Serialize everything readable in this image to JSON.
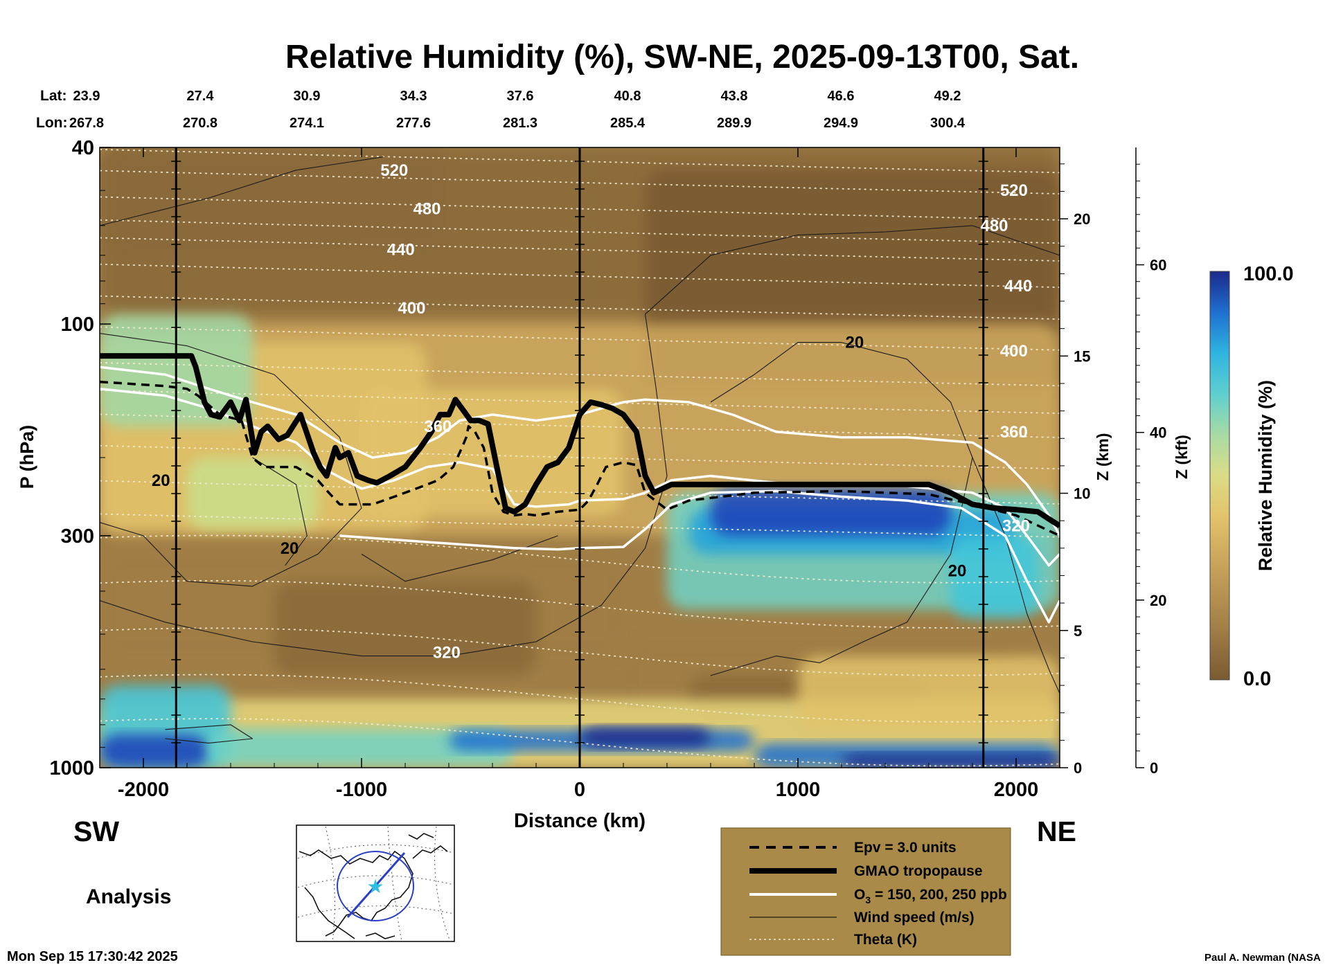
{
  "chart_data": {
    "type": "heatmap",
    "title": "Relative Humidity (%), SW-NE, 2025-09-13T00, Sat.",
    "xlabel": "Distance (km)",
    "ylabel": "P (hPa)",
    "z_km_label": "Z (km)",
    "z_kft_label": "Z (kft)",
    "colorbar_label": "Relative Humidity (%)",
    "colorbar_max_label": "100.0",
    "colorbar_min_label": "0.0",
    "colorbar_range": [
      0,
      100
    ],
    "xlim": [
      -2200,
      2200
    ],
    "ylim_hpa": [
      1000,
      40
    ],
    "x_ticks": [
      -2000,
      -1000,
      0,
      1000,
      2000
    ],
    "x_tick_labels": [
      "-2000",
      "-1000",
      "0",
      "1000",
      "2000"
    ],
    "p_ticks": [
      1000,
      300,
      100,
      40
    ],
    "p_tick_labels": [
      "1000",
      "300",
      "100",
      "40"
    ],
    "z_km_ticks": [
      0,
      5,
      10,
      15,
      20
    ],
    "z_km_tick_labels": [
      "0",
      "5",
      "10",
      "15",
      "20"
    ],
    "z_kft_ticks": [
      0,
      20,
      40,
      60
    ],
    "z_kft_tick_labels": [
      "0",
      "20",
      "40",
      "60"
    ],
    "lat_label": "Lat:",
    "lon_label": "Lon:",
    "lat_values": [
      "23.9",
      "27.4",
      "30.9",
      "34.3",
      "37.6",
      "40.8",
      "43.8",
      "46.6",
      "49.2"
    ],
    "lon_values": [
      "267.8",
      "270.8",
      "274.1",
      "277.6",
      "281.3",
      "285.4",
      "289.9",
      "294.9",
      "300.4"
    ],
    "lat_lon_distances": [
      -2200,
      -1700,
      -1200,
      -700,
      -200,
      300,
      800,
      1300,
      1800
    ],
    "vertical_markers_km": [
      -1850,
      0,
      1850
    ],
    "theta_contours": [
      {
        "label": "520",
        "p": 45,
        "label_x": -850
      },
      {
        "label": "480",
        "p": 55,
        "label_x": -700
      },
      {
        "label": "440",
        "p": 68,
        "label_x": -820
      },
      {
        "label": "400",
        "p": 92,
        "label_x": -770
      },
      {
        "label": "360",
        "p": 170,
        "label_x": -650
      },
      {
        "label": "320",
        "p": 550,
        "label_x": -610
      }
    ],
    "theta_right_labels": [
      {
        "label": "520",
        "p": 50,
        "x": 1990
      },
      {
        "label": "480",
        "p": 60,
        "x": 1900
      },
      {
        "label": "440",
        "p": 82,
        "x": 2010
      },
      {
        "label": "400",
        "p": 115,
        "x": 1990
      },
      {
        "label": "360",
        "p": 175,
        "x": 1990
      },
      {
        "label": "320",
        "p": 285,
        "x": 2000
      }
    ],
    "wind_labels": [
      {
        "label": "20",
        "x": 1260,
        "p": 110
      },
      {
        "label": "20",
        "x": -1920,
        "p": 225
      },
      {
        "label": "20",
        "x": -1330,
        "p": 320
      },
      {
        "label": "20",
        "x": 1730,
        "p": 360
      }
    ],
    "tropopause": {
      "x": [
        -2200,
        -1780,
        -1760,
        -1720,
        -1690,
        -1650,
        -1600,
        -1560,
        -1530,
        -1490,
        -1460,
        -1430,
        -1380,
        -1340,
        -1280,
        -1220,
        -1190,
        -1160,
        -1120,
        -1100,
        -1060,
        -1020,
        -970,
        -930,
        -870,
        -800,
        -730,
        -680,
        -640,
        -600,
        -570,
        -540,
        -500,
        -460,
        -420,
        -380,
        -340,
        -300,
        -250,
        -200,
        -150,
        -100,
        -50,
        0,
        50,
        100,
        150,
        200,
        260,
        300,
        340,
        380,
        420,
        500,
        600,
        800,
        1000,
        1200,
        1400,
        1600,
        1700,
        1800,
        1900,
        2000,
        2100,
        2150,
        2200
      ],
      "p": [
        118,
        118,
        125,
        150,
        160,
        162,
        150,
        165,
        148,
        195,
        175,
        170,
        182,
        178,
        160,
        195,
        210,
        220,
        190,
        200,
        195,
        220,
        225,
        228,
        220,
        210,
        190,
        175,
        160,
        160,
        148,
        155,
        165,
        165,
        168,
        210,
        260,
        265,
        255,
        230,
        210,
        205,
        190,
        160,
        150,
        152,
        155,
        160,
        175,
        220,
        240,
        235,
        230,
        230,
        230,
        230,
        230,
        230,
        230,
        230,
        240,
        255,
        260,
        262,
        265,
        275,
        285
      ]
    },
    "epv_3_units": {
      "x": [
        -2200,
        -1900,
        -1800,
        -1750,
        -1650,
        -1550,
        -1500,
        -1450,
        -1300,
        -1200,
        -1150,
        -1100,
        -1050,
        -950,
        -850,
        -750,
        -650,
        -580,
        -540,
        -520,
        -510,
        -480,
        -440,
        -400,
        -350,
        -300,
        -250,
        -200,
        -100,
        0,
        40,
        80,
        120,
        200,
        260,
        300,
        400,
        500,
        800,
        1200,
        1600,
        1800,
        2000,
        2200
      ],
      "p": [
        135,
        138,
        140,
        145,
        160,
        165,
        200,
        210,
        210,
        225,
        240,
        255,
        255,
        255,
        245,
        235,
        225,
        210,
        190,
        180,
        170,
        175,
        190,
        240,
        265,
        270,
        268,
        270,
        265,
        262,
        250,
        230,
        210,
        205,
        208,
        240,
        262,
        250,
        240,
        238,
        242,
        255,
        270,
        300
      ]
    },
    "ozone_contours": [
      {
        "label": "150 ppb",
        "x": [
          -2200,
          -1900,
          -1700,
          -1500,
          -1300,
          -1100,
          -950,
          -800,
          -650,
          -550,
          -400,
          -200,
          0,
          200,
          300,
          500,
          700,
          900,
          1200,
          1500,
          1800,
          1950,
          2050,
          2150,
          2200
        ],
        "p": [
          125,
          130,
          140,
          150,
          160,
          185,
          200,
          195,
          180,
          165,
          160,
          165,
          160,
          150,
          148,
          150,
          160,
          175,
          180,
          180,
          185,
          205,
          230,
          270,
          300
        ]
      },
      {
        "label": "200 ppb",
        "x": [
          -2200,
          -1900,
          -1700,
          -1500,
          -1300,
          -1150,
          -1000,
          -850,
          -700,
          -550,
          -400,
          -300,
          -200,
          -50,
          0,
          200,
          300,
          420,
          600,
          900,
          1200,
          1500,
          1800,
          1950,
          2050,
          2150,
          2200
        ],
        "p": [
          140,
          145,
          155,
          170,
          185,
          215,
          235,
          225,
          210,
          205,
          212,
          255,
          258,
          255,
          250,
          248,
          240,
          225,
          220,
          228,
          232,
          232,
          240,
          260,
          300,
          350,
          330
        ]
      },
      {
        "label": "250 ppb",
        "x": [
          -1100,
          -900,
          -700,
          -500,
          -300,
          -100,
          0,
          200,
          300,
          420,
          600,
          900,
          1200,
          1500,
          1750,
          1950,
          2050,
          2150,
          2200
        ],
        "p": [
          300,
          305,
          310,
          315,
          320,
          322,
          320,
          318,
          290,
          255,
          240,
          238,
          245,
          250,
          260,
          300,
          380,
          470,
          420
        ]
      }
    ],
    "legend": {
      "epv_label": "Epv = 3.0 units",
      "tropopause_label": "GMAO tropopause",
      "ozone_label_prefix": "O",
      "ozone_label_sub": "3",
      "ozone_label_suffix": " = 150, 200, 250 ppb",
      "wind_label": "Wind speed (m/s)",
      "theta_label": "Theta (K)"
    },
    "colormap": [
      "#7a5a32",
      "#8a6a3a",
      "#9f7d45",
      "#b99554",
      "#d0aa5f",
      "#e2c36a",
      "#e7d77d",
      "#c9e08c",
      "#9fd9a8",
      "#6fd3c6",
      "#3fc6dc",
      "#20a2dc",
      "#1f6fd0",
      "#1d3fb8",
      "#1b2a8a"
    ]
  },
  "annotations": {
    "sw_label": "SW",
    "ne_label": "NE",
    "analysis_label": "Analysis",
    "timestamp": "Mon Sep 15 17:30:42 2025",
    "author": "Paul A. Newman (NASA"
  },
  "colors": {
    "legend_bg": "#a98a48",
    "path_line": "#2a3fc7",
    "path_marker": "#2fbfe0"
  }
}
